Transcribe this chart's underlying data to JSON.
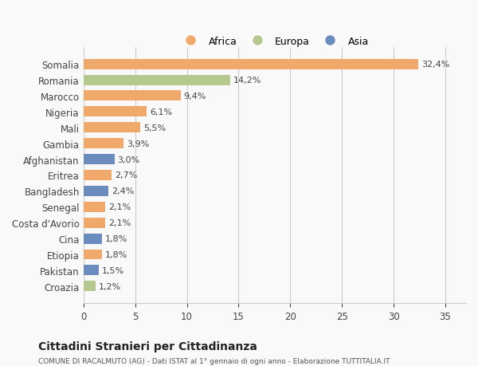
{
  "countries": [
    "Somalia",
    "Romania",
    "Marocco",
    "Nigeria",
    "Mali",
    "Gambia",
    "Afghanistan",
    "Eritrea",
    "Bangladesh",
    "Senegal",
    "Costa d'Avorio",
    "Cina",
    "Etiopia",
    "Pakistan",
    "Croazia"
  ],
  "values": [
    32.4,
    14.2,
    9.4,
    6.1,
    5.5,
    3.9,
    3.0,
    2.7,
    2.4,
    2.1,
    2.1,
    1.8,
    1.8,
    1.5,
    1.2
  ],
  "labels": [
    "32,4%",
    "14,2%",
    "9,4%",
    "6,1%",
    "5,5%",
    "3,9%",
    "3,0%",
    "2,7%",
    "2,4%",
    "2,1%",
    "2,1%",
    "1,8%",
    "1,8%",
    "1,5%",
    "1,2%"
  ],
  "continents": [
    "Africa",
    "Europa",
    "Africa",
    "Africa",
    "Africa",
    "Africa",
    "Asia",
    "Africa",
    "Asia",
    "Africa",
    "Africa",
    "Asia",
    "Africa",
    "Asia",
    "Europa"
  ],
  "colors": {
    "Africa": "#F0A96B",
    "Europa": "#B5C98E",
    "Asia": "#6B8CBF"
  },
  "legend_labels": [
    "Africa",
    "Europa",
    "Asia"
  ],
  "title": "Cittadini Stranieri per Cittadinanza",
  "subtitle": "COMUNE DI RACALMUTO (AG) - Dati ISTAT al 1° gennaio di ogni anno - Elaborazione TUTTITALIA.IT",
  "xlim": [
    0,
    37
  ],
  "xticks": [
    0,
    5,
    10,
    15,
    20,
    25,
    30,
    35
  ],
  "background_color": "#f9f9f9",
  "grid_color": "#cccccc",
  "bar_height": 0.65
}
